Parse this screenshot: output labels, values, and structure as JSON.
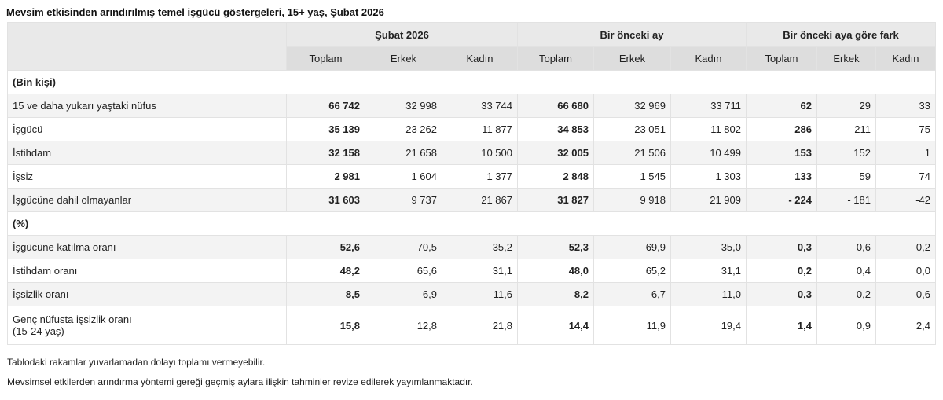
{
  "title": "Mevsim etkisinden arındırılmış temel işgücü göstergeleri, 15+ yaş, Şubat 2026",
  "groups": [
    "Şubat 2026",
    "Bir önceki ay",
    "Bir önceki aya göre fark"
  ],
  "subheaders": [
    "Toplam",
    "Erkek",
    "Kadın",
    "Toplam",
    "Erkek",
    "Kadın",
    "Toplam",
    "Erkek",
    "Kadın"
  ],
  "section1": "(Bin kişi)",
  "rows1": [
    {
      "label": "15 ve daha yukarı yaştaki nüfus",
      "v": [
        "66 742",
        "32 998",
        "33 744",
        "66 680",
        "32 969",
        "33 711",
        "62",
        "29",
        "33"
      ]
    },
    {
      "label": "İşgücü",
      "v": [
        "35 139",
        "23 262",
        "11 877",
        "34 853",
        "23 051",
        "11 802",
        "286",
        "211",
        "75"
      ]
    },
    {
      "label": "İstihdam",
      "v": [
        "32 158",
        "21 658",
        "10 500",
        "32 005",
        "21 506",
        "10 499",
        "153",
        "152",
        "1"
      ]
    },
    {
      "label": "İşsiz",
      "v": [
        "2 981",
        "1 604",
        "1 377",
        "2 848",
        "1 545",
        "1 303",
        "133",
        "59",
        "74"
      ]
    },
    {
      "label": "İşgücüne dahil olmayanlar",
      "v": [
        "31 603",
        "9 737",
        "21 867",
        "31 827",
        "9 918",
        "21 909",
        "- 224",
        "- 181",
        "-42"
      ]
    }
  ],
  "section2": "(%)",
  "rows2": [
    {
      "label": "İşgücüne katılma oranı",
      "v": [
        "52,6",
        "70,5",
        "35,2",
        "52,3",
        "69,9",
        "35,0",
        "0,3",
        "0,6",
        "0,2"
      ]
    },
    {
      "label": "İstihdam oranı",
      "v": [
        "48,2",
        "65,6",
        "31,1",
        "48,0",
        "65,2",
        "31,1",
        "0,2",
        "0,4",
        "0,0"
      ]
    },
    {
      "label": "İşsizlik oranı",
      "v": [
        "8,5",
        "6,9",
        "11,6",
        "8,2",
        "6,7",
        "11,0",
        "0,3",
        "0,2",
        "0,6"
      ]
    },
    {
      "label": "Genç nüfusta işsizlik oranı",
      "label2": "(15-24 yaş)",
      "v": [
        "15,8",
        "12,8",
        "21,8",
        "14,4",
        "11,9",
        "19,4",
        "1,4",
        "0,9",
        "2,4"
      ]
    }
  ],
  "notes": [
    "Tablodaki rakamlar yuvarlamadan dolayı toplamı vermeyebilir.",
    "Mevsimsel etkilerden arındırma yöntemi gereği geçmiş aylara ilişkin tahminler revize edilerek yayımlanmaktadır."
  ]
}
